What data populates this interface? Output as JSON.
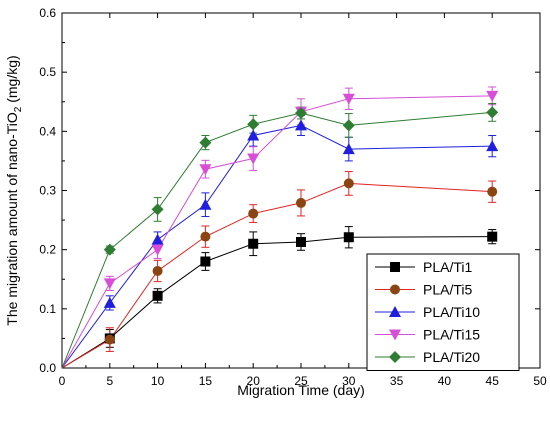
{
  "chart_data": {
    "type": "line",
    "xlabel": "Migration Time (day)",
    "ylabel_prefix": "The migration amount of nano-TiO",
    "ylabel_sub": "2",
    "ylabel_suffix": " (mg/kg)",
    "xlim": [
      0,
      50
    ],
    "ylim": [
      0.0,
      0.6
    ],
    "xticks": [
      0,
      5,
      10,
      15,
      20,
      25,
      30,
      35,
      40,
      45,
      50
    ],
    "yticks": [
      "0.0",
      "0.1",
      "0.2",
      "0.3",
      "0.4",
      "0.5",
      "0.6"
    ],
    "grid": false,
    "legend_position": "bottom-right",
    "series": [
      {
        "name": "PLA/Ti1",
        "color": "#000000",
        "marker": "square",
        "x": [
          0,
          5,
          10,
          15,
          20,
          25,
          30,
          45
        ],
        "y": [
          0.0,
          0.05,
          0.122,
          0.18,
          0.21,
          0.213,
          0.221,
          0.222
        ],
        "err": [
          0,
          0.015,
          0.012,
          0.015,
          0.02,
          0.014,
          0.018,
          0.012
        ]
      },
      {
        "name": "PLA/Ti5",
        "color": "#8B4513",
        "line_color": "#e32222",
        "marker": "circle",
        "x": [
          0,
          5,
          10,
          15,
          20,
          25,
          30,
          45
        ],
        "y": [
          0.0,
          0.048,
          0.164,
          0.222,
          0.261,
          0.279,
          0.312,
          0.298
        ],
        "err": [
          0,
          0.02,
          0.018,
          0.018,
          0.015,
          0.022,
          0.02,
          0.018
        ]
      },
      {
        "name": "PLA/Ti10",
        "color": "#1f1fdd",
        "marker": "triangle-up",
        "x": [
          0,
          5,
          10,
          15,
          20,
          25,
          30,
          45
        ],
        "y": [
          0.0,
          0.11,
          0.217,
          0.276,
          0.393,
          0.41,
          0.37,
          0.375
        ],
        "err": [
          0,
          0.012,
          0.013,
          0.02,
          0.018,
          0.017,
          0.02,
          0.018
        ]
      },
      {
        "name": "PLA/Ti15",
        "color": "#d64fd6",
        "marker": "triangle-down",
        "x": [
          0,
          5,
          10,
          15,
          20,
          25,
          30,
          45
        ],
        "y": [
          0.0,
          0.143,
          0.2,
          0.336,
          0.354,
          0.433,
          0.455,
          0.46
        ],
        "err": [
          0,
          0.012,
          0.015,
          0.015,
          0.02,
          0.022,
          0.018,
          0.015
        ]
      },
      {
        "name": "PLA/Ti20",
        "color": "#2e7d32",
        "marker": "diamond",
        "x": [
          0,
          5,
          10,
          15,
          20,
          25,
          30,
          45
        ],
        "y": [
          0.0,
          0.2,
          0.268,
          0.381,
          0.412,
          0.431,
          0.41,
          0.432
        ],
        "err": [
          0,
          0.006,
          0.02,
          0.012,
          0.015,
          0.01,
          0.02,
          0.015
        ]
      }
    ]
  }
}
